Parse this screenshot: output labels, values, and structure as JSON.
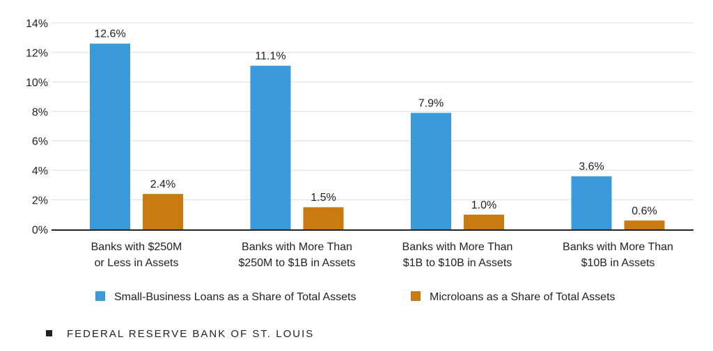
{
  "chart_data": {
    "type": "bar",
    "categories": [
      [
        "Banks with $250M",
        "or Less in Assets"
      ],
      [
        "Banks with More Than",
        "$250M to $1B in Assets"
      ],
      [
        "Banks with More Than",
        "$1B to $10B in Assets"
      ],
      [
        "Banks with More Than",
        "$10B in Assets"
      ]
    ],
    "series": [
      {
        "name": "Small-Business Loans as a Share of Total Assets",
        "color": "#3a9ad9",
        "values": [
          12.6,
          11.1,
          7.9,
          3.6
        ],
        "labels": [
          "12.6%",
          "11.1%",
          "7.9%",
          "3.6%"
        ]
      },
      {
        "name": "Microloans as a Share of Total Assets",
        "color": "#c97a10",
        "values": [
          2.4,
          1.5,
          1.0,
          0.6
        ],
        "labels": [
          "2.4%",
          "1.5%",
          "1.0%",
          "0.6%"
        ]
      }
    ],
    "yticks": [
      0,
      2,
      4,
      6,
      8,
      10,
      12,
      14
    ],
    "ytick_labels": [
      "0%",
      "2%",
      "4%",
      "6%",
      "8%",
      "10%",
      "12%",
      "14%"
    ],
    "ylim": [
      0,
      14
    ],
    "grid": true,
    "legend_position": "bottom"
  },
  "source": {
    "text": "FEDERAL RESERVE BANK OF ST. LOUIS"
  }
}
